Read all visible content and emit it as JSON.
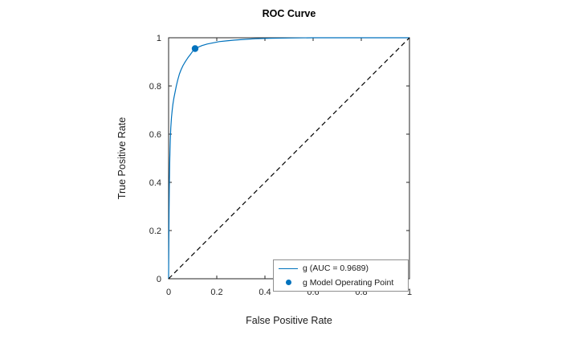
{
  "chart_data": {
    "type": "line",
    "title": "ROC Curve",
    "xlabel": "False Positive Rate",
    "ylabel": "True Positive Rate",
    "xlim": [
      0,
      1
    ],
    "ylim": [
      0,
      1
    ],
    "xticks": [
      "0",
      "0.2",
      "0.4",
      "0.6",
      "0.8",
      "1"
    ],
    "yticks": [
      "0",
      "0.2",
      "0.4",
      "0.6",
      "0.8",
      "1"
    ],
    "grid": false,
    "box": true,
    "axis_color": "#262626",
    "legend_position": "lower-right",
    "auc": 0.9689,
    "series": [
      {
        "id": "roc-curve",
        "name": "g (AUC = 0.9689)",
        "type": "line",
        "color": "#0072BD",
        "dash": false,
        "x": [
          0,
          0.001,
          0.002,
          0.003,
          0.005,
          0.007,
          0.009,
          0.012,
          0.015,
          0.018,
          0.022,
          0.027,
          0.032,
          0.038,
          0.045,
          0.052,
          0.06,
          0.07,
          0.08,
          0.09,
          0.1,
          0.11,
          0.125,
          0.14,
          0.16,
          0.185,
          0.21,
          0.24,
          0.27,
          0.31,
          0.36,
          0.42,
          0.5,
          0.6,
          1
        ],
        "y": [
          0,
          0.15,
          0.28,
          0.38,
          0.5,
          0.575,
          0.625,
          0.67,
          0.7,
          0.725,
          0.75,
          0.775,
          0.8,
          0.825,
          0.85,
          0.868,
          0.885,
          0.902,
          0.917,
          0.93,
          0.944,
          0.955,
          0.962,
          0.968,
          0.974,
          0.979,
          0.984,
          0.987,
          0.99,
          0.993,
          0.996,
          0.998,
          0.999,
          1,
          1
        ]
      },
      {
        "id": "operating-point",
        "name": "g Model Operating Point",
        "type": "scatter",
        "color": "#0072BD",
        "x": [
          0.11
        ],
        "y": [
          0.955
        ]
      },
      {
        "id": "diagonal-reference",
        "type": "line",
        "color": "#000000",
        "dash": true,
        "x": [
          0,
          1
        ],
        "y": [
          0,
          1
        ]
      }
    ],
    "legend_entries": [
      "g (AUC = 0.9689)",
      "g Model Operating Point"
    ]
  },
  "colors": {
    "accent_blue": "#0072BD",
    "axis": "#262626",
    "background": "#ffffff",
    "legend_border": "#8f8f8f"
  }
}
